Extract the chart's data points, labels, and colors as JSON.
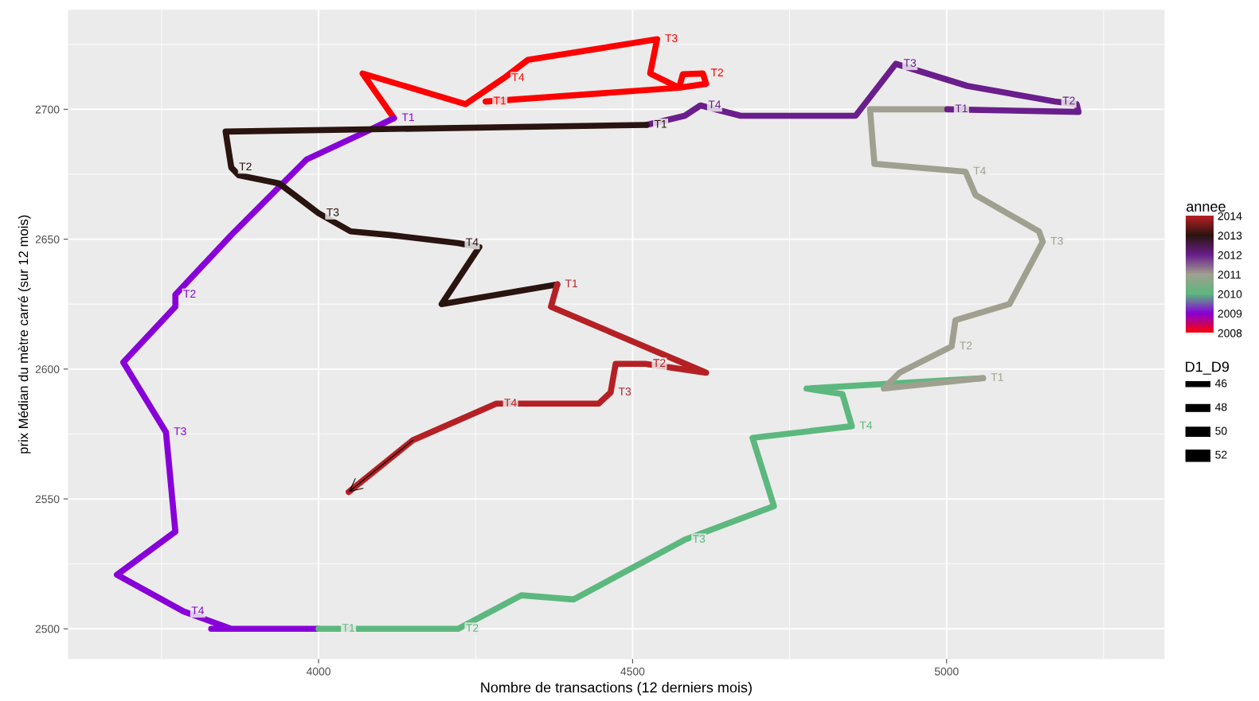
{
  "chart_data": {
    "type": "line",
    "xlabel": "Nombre de transactions (12 derniers mois)",
    "ylabel": "prix Médian du mètre carré (sur 12 mois)",
    "xlim": [
      3601,
      5347
    ],
    "ylim": [
      2488.4,
      2738.3
    ],
    "xticks": [
      4000,
      4500,
      5000
    ],
    "yticks": [
      2500,
      2550,
      2600,
      2650,
      2700
    ],
    "grid": true,
    "line_style": "solid",
    "clabel": "annee",
    "clim": [
      2008,
      2014
    ],
    "cticks": [
      2008,
      2009,
      2010,
      2011,
      2012,
      2013,
      2014
    ],
    "series": [
      {
        "color": "#ff0000",
        "x": [
          4266,
          4574,
          4580,
          4612,
          4617,
          4574,
          4528,
          4539,
          4333,
          4295,
          4234,
          4070,
          4120
        ],
        "values": [
          2703,
          2708.3,
          2713.5,
          2713.8,
          2709.8,
          2708.3,
          2713.8,
          2727,
          2719,
          2712,
          2702,
          2713.8,
          2696.6
        ],
        "value_labels": [
          "T1",
          null,
          null,
          "T2",
          null,
          null,
          null,
          "T3",
          null,
          "T4",
          null,
          null,
          null
        ]
      },
      {
        "color": "#8800d8",
        "x": [
          4120,
          4076,
          3981,
          3861,
          3772,
          3772,
          3689,
          3757,
          3772,
          3679,
          3785,
          3861,
          3829,
          4000
        ],
        "values": [
          2696.6,
          2691.4,
          2680.7,
          2651.6,
          2628.6,
          2624,
          2602.6,
          2575.7,
          2537.4,
          2520.8,
          2506.7,
          2500,
          2500,
          2500
        ],
        "value_labels": [
          "T1",
          null,
          null,
          null,
          "T2",
          null,
          null,
          "T3",
          null,
          null,
          "T4",
          null,
          null,
          null
        ]
      },
      {
        "color": "#5cb87e",
        "x": [
          4000,
          4025,
          4222,
          4323,
          4406,
          4583,
          4725,
          4691,
          4849,
          4834,
          4777,
          5058
        ],
        "values": [
          2500,
          2500,
          2500,
          2512.9,
          2511.3,
          2534.3,
          2547.2,
          2573.5,
          2578,
          2590.4,
          2592.5,
          2596.5
        ],
        "value_labels": [
          null,
          "T1",
          "T2",
          null,
          null,
          "T3",
          null,
          null,
          "T4",
          null,
          null,
          null
        ]
      },
      {
        "color": "#a0a090",
        "x": [
          5058,
          4900,
          4925,
          5008,
          5014,
          5100,
          5153,
          5147,
          5046,
          5030,
          4885,
          4878,
          5001
        ],
        "values": [
          2596.5,
          2592.5,
          2598.6,
          2608.7,
          2618.8,
          2625,
          2649,
          2653,
          2667,
          2676,
          2679,
          2700,
          2700
        ],
        "value_labels": [
          "T1",
          null,
          null,
          "T2",
          null,
          null,
          "T3",
          null,
          null,
          "T4",
          null,
          null,
          null
        ]
      },
      {
        "color": "#6a1e8c",
        "x": [
          5001,
          5210,
          5207,
          5172,
          5033,
          4919,
          4855,
          4672,
          4608,
          4583,
          4522
        ],
        "values": [
          2700,
          2699,
          2702,
          2703,
          2709,
          2717.5,
          2697.5,
          2697.5,
          2701.5,
          2697.5,
          2694
        ],
        "value_labels": [
          "T1",
          null,
          null,
          "T2",
          null,
          "T3",
          null,
          null,
          "T4",
          null,
          null
        ]
      },
      {
        "color": "#2a1410",
        "x": [
          4522,
          3852,
          3861,
          3873,
          3937,
          4000,
          4051,
          4114,
          4222,
          4256,
          4196,
          4380
        ],
        "values": [
          2694,
          2691.4,
          2677.6,
          2674.6,
          2671.5,
          2660,
          2653,
          2651.6,
          2648.5,
          2647,
          2625,
          2632.6
        ],
        "value_labels": [
          "T1",
          null,
          "T2",
          null,
          null,
          "T3",
          null,
          null,
          "T4",
          null,
          null,
          null
        ]
      },
      {
        "color": "#b52025",
        "x": [
          4380,
          4370,
          4617,
          4520,
          4473,
          4465,
          4446,
          4283,
          4150,
          4048
        ],
        "values": [
          2632.6,
          2624,
          2598.6,
          2602,
          2602,
          2591,
          2586.7,
          2586.7,
          2572.6,
          2552.7
        ],
        "value_labels": [
          "T1",
          null,
          null,
          "T2",
          null,
          "T3",
          null,
          "T4",
          null,
          null
        ]
      }
    ],
    "annotations": [
      "D1_D9",
      "46",
      "48",
      "50",
      "52"
    ]
  }
}
